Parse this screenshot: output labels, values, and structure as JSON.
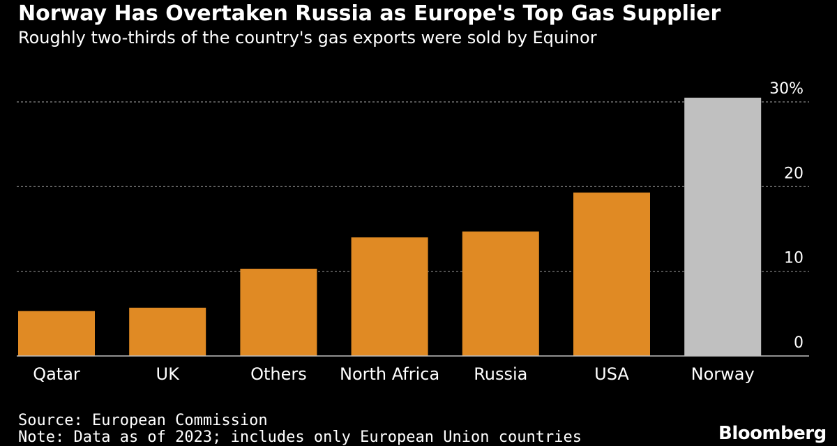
{
  "chart_data": {
    "type": "bar",
    "title": "Norway Has Overtaken Russia as Europe's Top Gas Supplier",
    "subtitle": "Roughly two-thirds of the country's gas exports were sold by Equinor",
    "categories": [
      "Qatar",
      "UK",
      "Others",
      "North Africa",
      "Russia",
      "USA",
      "Norway"
    ],
    "values": [
      5.3,
      5.7,
      10.3,
      14.0,
      14.7,
      19.3,
      30.5
    ],
    "yticks": [
      "0",
      "10",
      "20",
      "30%"
    ],
    "ylim": [
      0,
      30
    ],
    "grid": true,
    "colors": {
      "default": "#e08a24",
      "highlight": "#c0c0c0",
      "highlight_category": "Norway"
    }
  },
  "source": "Source: European Commission",
  "note": "Note: Data as of 2023; includes only European Union countries",
  "brand": "Bloomberg"
}
